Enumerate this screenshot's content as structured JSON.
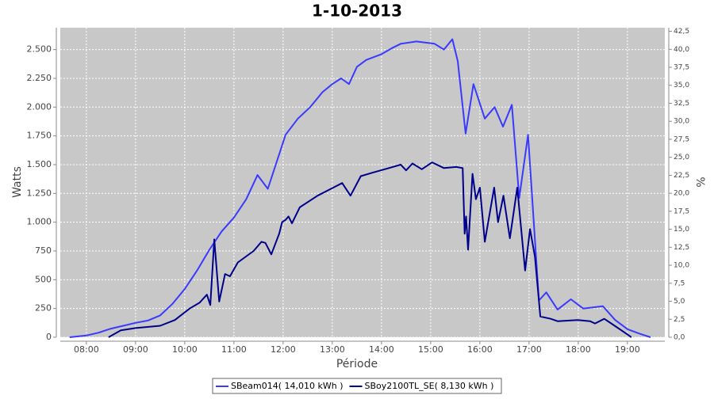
{
  "chart_data": {
    "type": "line",
    "title": "1-10-2013",
    "x_label": "Période",
    "y_label": "Watts",
    "y2_label": "%",
    "grid": true,
    "legend": "bottom",
    "xlim": [
      7.47,
      19.76
    ],
    "xticks": [
      {
        "value": 8,
        "label": "08:00"
      },
      {
        "value": 9,
        "label": "09:00"
      },
      {
        "value": 10,
        "label": "10:00"
      },
      {
        "value": 11,
        "label": "11:00"
      },
      {
        "value": 12,
        "label": "12:00"
      },
      {
        "value": 13,
        "label": "13:00"
      },
      {
        "value": 14,
        "label": "14:00"
      },
      {
        "value": 15,
        "label": "15:00"
      },
      {
        "value": 16,
        "label": "16:00"
      },
      {
        "value": 17,
        "label": "17:00"
      },
      {
        "value": 18,
        "label": "18:00"
      },
      {
        "value": 19,
        "label": "19:00"
      }
    ],
    "ylim": [
      0,
      2690
    ],
    "yticks": [
      0,
      250,
      500,
      750,
      {
        "value": 1000,
        "label": "1.000"
      },
      {
        "value": 1250,
        "label": "1.250"
      },
      {
        "value": 1500,
        "label": "1.500"
      },
      {
        "value": 1750,
        "label": "1.750"
      },
      {
        "value": 2000,
        "label": "2.000"
      },
      {
        "value": 2250,
        "label": "2.250"
      },
      {
        "value": 2500,
        "label": "2.500"
      }
    ],
    "y2lim": [
      0,
      43
    ],
    "y2ticks": [
      {
        "value": 0,
        "label": "0,0"
      },
      {
        "value": 2.5,
        "label": "2,5"
      },
      {
        "value": 5,
        "label": "5,0"
      },
      {
        "value": 7.5,
        "label": "7,5"
      },
      {
        "value": 10,
        "label": "10,0"
      },
      {
        "value": 12.5,
        "label": "12,5"
      },
      {
        "value": 15,
        "label": "15,0"
      },
      {
        "value": 17.5,
        "label": "17,5"
      },
      {
        "value": 20,
        "label": "20,0"
      },
      {
        "value": 22.5,
        "label": "22,5"
      },
      {
        "value": 25,
        "label": "25,0"
      },
      {
        "value": 27.5,
        "label": "27,5"
      },
      {
        "value": 30,
        "label": "30,0"
      },
      {
        "value": 32.5,
        "label": "32,5"
      },
      {
        "value": 35,
        "label": "35,0"
      },
      {
        "value": 37.5,
        "label": "37,5"
      },
      {
        "value": 40,
        "label": "40,0"
      },
      {
        "value": 42.5,
        "label": "42,5"
      }
    ],
    "series": [
      {
        "name": "SBeam014( 14,010 kWh )",
        "color": "#3a3aff",
        "x": [
          7.66,
          8.0,
          8.25,
          8.5,
          8.75,
          9.0,
          9.25,
          9.5,
          9.75,
          10.0,
          10.25,
          10.5,
          10.75,
          11.0,
          11.25,
          11.48,
          11.69,
          11.85,
          12.05,
          12.3,
          12.55,
          12.8,
          13.0,
          13.18,
          13.34,
          13.5,
          13.69,
          14.0,
          14.2,
          14.39,
          14.71,
          15.08,
          15.27,
          15.44,
          15.55,
          15.71,
          15.87,
          16.1,
          16.3,
          16.47,
          16.65,
          16.8,
          16.98,
          17.2,
          17.35,
          17.58,
          17.85,
          18.1,
          18.5,
          18.75,
          19.0,
          19.25,
          19.47
        ],
        "values": [
          0,
          15,
          40,
          75,
          100,
          125,
          145,
          190,
          290,
          420,
          580,
          760,
          920,
          1040,
          1200,
          1410,
          1290,
          1500,
          1760,
          1900,
          2000,
          2130,
          2200,
          2250,
          2200,
          2350,
          2410,
          2460,
          2510,
          2550,
          2570,
          2550,
          2500,
          2590,
          2400,
          1770,
          2200,
          1900,
          2000,
          1830,
          2020,
          1210,
          1760,
          320,
          390,
          240,
          330,
          250,
          270,
          150,
          70,
          30,
          0
        ]
      },
      {
        "name": "SBoy2100TL_SE( 8,130 kWh )",
        "color": "#00008b",
        "x": [
          8.45,
          8.7,
          9.0,
          9.5,
          9.8,
          10.1,
          10.3,
          10.45,
          10.52,
          10.6,
          10.7,
          10.82,
          10.92,
          11.08,
          11.4,
          11.56,
          11.64,
          11.76,
          11.92,
          11.98,
          12.05,
          12.11,
          12.18,
          12.34,
          12.7,
          13.02,
          13.2,
          13.37,
          13.58,
          13.82,
          14.15,
          14.39,
          14.5,
          14.63,
          14.82,
          15.03,
          15.27,
          15.52,
          15.65,
          15.69,
          15.72,
          15.76,
          15.85,
          15.92,
          16.0,
          16.1,
          16.29,
          16.37,
          16.48,
          16.61,
          16.76,
          16.92,
          17.02,
          17.12,
          17.23,
          17.44,
          17.58,
          17.99,
          18.24,
          18.34,
          18.53,
          18.74,
          18.98,
          19.08
        ],
        "values": [
          0,
          60,
          80,
          100,
          150,
          250,
          300,
          370,
          280,
          850,
          310,
          550,
          530,
          650,
          750,
          830,
          820,
          720,
          900,
          1000,
          1020,
          1050,
          990,
          1130,
          1230,
          1300,
          1340,
          1230,
          1400,
          1430,
          1470,
          1500,
          1450,
          1510,
          1460,
          1520,
          1470,
          1480,
          1470,
          900,
          1050,
          760,
          1420,
          1200,
          1300,
          830,
          1300,
          1000,
          1230,
          860,
          1300,
          580,
          940,
          700,
          180,
          160,
          140,
          150,
          140,
          120,
          160,
          100,
          30,
          0
        ]
      }
    ]
  }
}
